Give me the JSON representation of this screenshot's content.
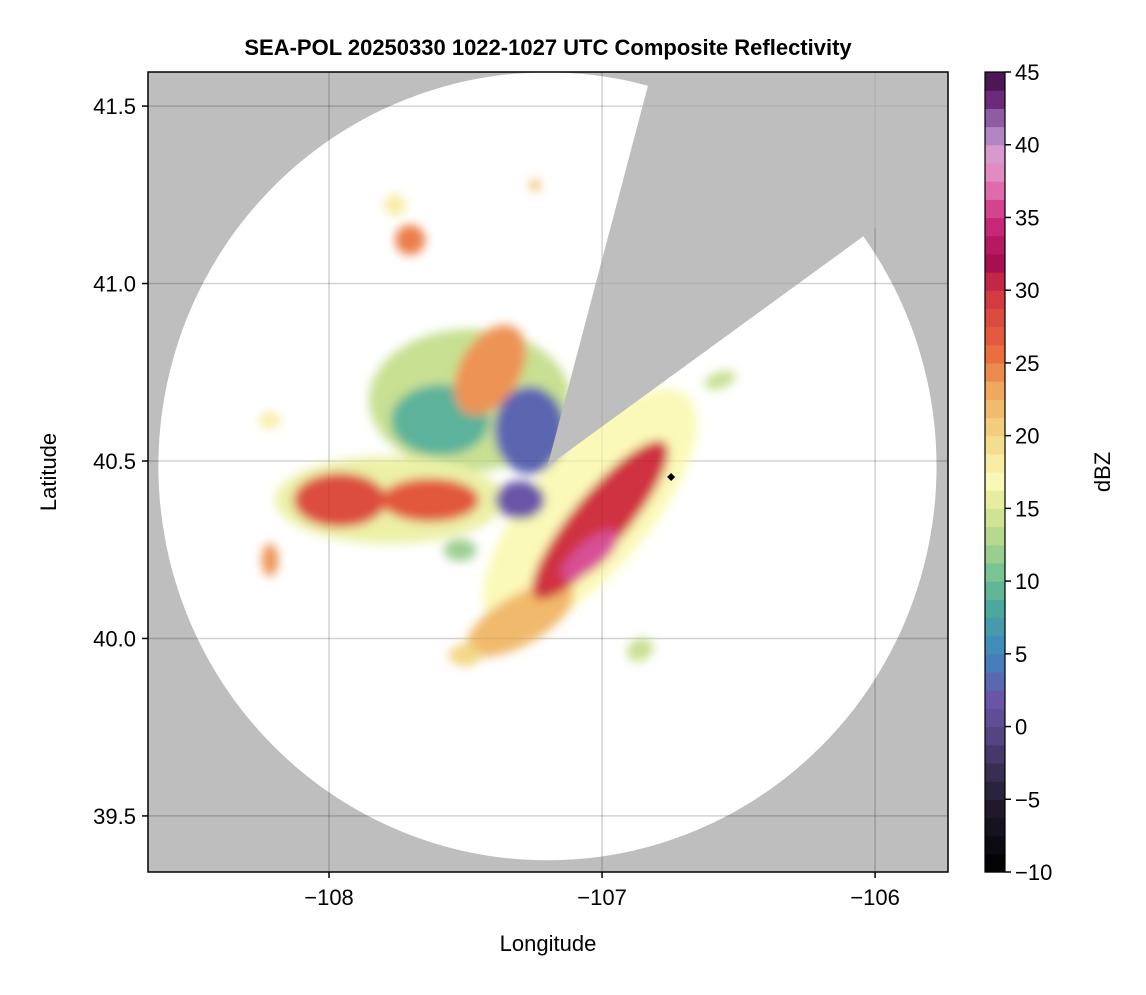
{
  "chart_data": {
    "type": "heatmap",
    "title": "SEA-POL 20250330 1022-1027 UTC Composite Reflectivity",
    "xlabel": "Longitude",
    "ylabel": "Latitude",
    "xlim": [
      -108.663,
      -105.733
    ],
    "ylim": [
      39.342,
      41.596
    ],
    "xticks": [
      -108,
      -107,
      -106
    ],
    "xtick_labels": [
      "−108",
      "−107",
      "−106"
    ],
    "yticks": [
      39.5,
      40.0,
      40.5,
      41.0,
      41.5
    ],
    "ytick_labels": [
      "39.5",
      "40.0",
      "40.5",
      "41.0",
      "41.5"
    ],
    "grid": true,
    "colorbar": {
      "label": "dBZ",
      "range": [
        -10,
        45
      ],
      "ticks": [
        -10,
        -5,
        0,
        5,
        10,
        15,
        20,
        25,
        30,
        35,
        40,
        45
      ],
      "tick_labels": [
        "−10",
        "−5",
        "0",
        "5",
        "10",
        "15",
        "20",
        "25",
        "30",
        "35",
        "40",
        "45"
      ],
      "colormap": [
        [
          -10,
          "#000000"
        ],
        [
          -5,
          "#231d30"
        ],
        [
          0,
          "#5a4a8e"
        ],
        [
          2,
          "#6a55a8"
        ],
        [
          5,
          "#3f86bf"
        ],
        [
          8,
          "#4aa6a0"
        ],
        [
          10,
          "#6bbd94"
        ],
        [
          13,
          "#b4d88e"
        ],
        [
          15,
          "#dce896"
        ],
        [
          17,
          "#fbf9b8"
        ],
        [
          20,
          "#f3d685"
        ],
        [
          23,
          "#f0aa5f"
        ],
        [
          26,
          "#e8663d"
        ],
        [
          30,
          "#cf3340"
        ],
        [
          32,
          "#a50d4f"
        ],
        [
          35,
          "#cf2f7f"
        ],
        [
          37,
          "#e070ad"
        ],
        [
          39,
          "#e1a0cf"
        ],
        [
          41,
          "#a780bf"
        ],
        [
          43,
          "#6f2d7e"
        ],
        [
          45,
          "#3d0b45"
        ]
      ]
    },
    "radar": {
      "lon": -107.2,
      "lat": 40.485,
      "range_lon_deg": 1.425,
      "range_lat_deg": 1.11,
      "blocked_sector_edges": [
        [
          -106.843,
          41.525
        ],
        [
          -106.061,
          41.123
        ]
      ]
    },
    "marker": {
      "lon": -106.747,
      "lat": 40.455
    },
    "colors": {
      "no_data": "#bebebe",
      "in_range": "#ffffff",
      "grid": "#d9d9d9"
    },
    "echoes": [
      {
        "lon": -107.484,
        "lat": 40.672,
        "rx": 0.37,
        "ry": 0.26,
        "rot": 0,
        "dbz": 14
      },
      {
        "lon": -107.593,
        "lat": 40.615,
        "rx": 0.18,
        "ry": 0.13,
        "rot": 0,
        "dbz": 9
      },
      {
        "lon": -107.264,
        "lat": 40.587,
        "rx": 0.13,
        "ry": 0.16,
        "rot": 0,
        "dbz": 3
      },
      {
        "lon": -107.41,
        "lat": 40.756,
        "rx": 0.11,
        "ry": 0.18,
        "rot": 30,
        "dbz": 24
      },
      {
        "lon": -107.777,
        "lat": 40.39,
        "rx": 0.42,
        "ry": 0.16,
        "rot": 0,
        "dbz": 16
      },
      {
        "lon": -107.96,
        "lat": 40.39,
        "rx": 0.17,
        "ry": 0.1,
        "rot": 0,
        "dbz": 28
      },
      {
        "lon": -107.63,
        "lat": 40.39,
        "rx": 0.18,
        "ry": 0.08,
        "rot": 0,
        "dbz": 27
      },
      {
        "lon": -107.044,
        "lat": 40.362,
        "rx": 0.55,
        "ry": 0.22,
        "rot": -50,
        "dbz": 17
      },
      {
        "lon": -107.3,
        "lat": 40.052,
        "rx": 0.22,
        "ry": 0.09,
        "rot": -30,
        "dbz": 22
      },
      {
        "lon": -107.007,
        "lat": 40.334,
        "rx": 0.37,
        "ry": 0.1,
        "rot": -50,
        "dbz": 30
      },
      {
        "lon": -107.044,
        "lat": 40.235,
        "rx": 0.13,
        "ry": 0.05,
        "rot": -40,
        "dbz": 36
      },
      {
        "lon": -107.3,
        "lat": 40.39,
        "rx": 0.09,
        "ry": 0.07,
        "rot": 0,
        "dbz": 2
      },
      {
        "lon": -107.703,
        "lat": 41.123,
        "rx": 0.055,
        "ry": 0.055,
        "rot": 0,
        "dbz": 25
      },
      {
        "lon": -107.758,
        "lat": 41.221,
        "rx": 0.04,
        "ry": 0.04,
        "rot": 0,
        "dbz": 18
      },
      {
        "lon": -108.216,
        "lat": 40.615,
        "rx": 0.04,
        "ry": 0.03,
        "rot": 0,
        "dbz": 18
      },
      {
        "lon": -108.216,
        "lat": 40.221,
        "rx": 0.03,
        "ry": 0.06,
        "rot": 0,
        "dbz": 24
      },
      {
        "lon": -107.52,
        "lat": 40.249,
        "rx": 0.06,
        "ry": 0.04,
        "rot": 0,
        "dbz": 12
      },
      {
        "lon": -106.861,
        "lat": 39.968,
        "rx": 0.05,
        "ry": 0.04,
        "rot": -30,
        "dbz": 14
      },
      {
        "lon": -106.568,
        "lat": 40.728,
        "rx": 0.06,
        "ry": 0.03,
        "rot": -20,
        "dbz": 14
      },
      {
        "lon": -107.502,
        "lat": 39.953,
        "rx": 0.06,
        "ry": 0.04,
        "rot": 0,
        "dbz": 20
      },
      {
        "lon": -107.245,
        "lat": 41.277,
        "rx": 0.02,
        "ry": 0.02,
        "rot": 0,
        "dbz": 22
      }
    ]
  }
}
